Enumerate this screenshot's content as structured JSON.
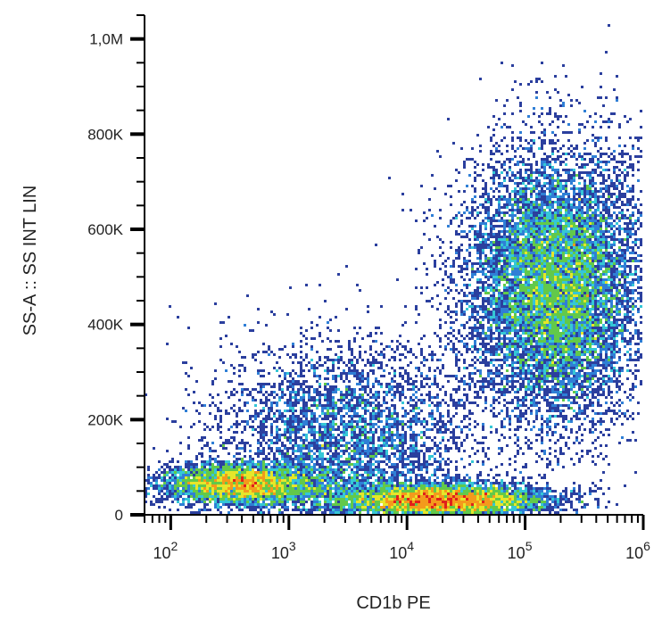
{
  "chart_data": {
    "type": "scatter",
    "subtype": "flow-cytometry density dot plot",
    "title": "",
    "xlabel": "CD1b PE",
    "ylabel": "SS-A :: SS INT LIN",
    "x_scale": "log",
    "y_scale": "linear",
    "xlim": [
      60,
      1000000
    ],
    "ylim": [
      0,
      1050000
    ],
    "x_ticks": [
      {
        "value": 100,
        "base": "10",
        "exp": "2"
      },
      {
        "value": 1000,
        "base": "10",
        "exp": "3"
      },
      {
        "value": 10000,
        "base": "10",
        "exp": "4"
      },
      {
        "value": 100000,
        "base": "10",
        "exp": "5"
      },
      {
        "value": 1000000,
        "base": "10",
        "exp": "6"
      }
    ],
    "y_ticks": [
      {
        "value": 0,
        "label": "0"
      },
      {
        "value": 200000,
        "label": "200K"
      },
      {
        "value": 400000,
        "label": "400K"
      },
      {
        "value": 600000,
        "label": "600K"
      },
      {
        "value": 800000,
        "label": "800K"
      },
      {
        "value": 1000000,
        "label": "1,0M"
      }
    ],
    "grid": false,
    "color_scale": [
      "#2b3f9e",
      "#2f7fd6",
      "#35c7d6",
      "#62c94a",
      "#e6e62a",
      "#f39a1c",
      "#e0201c"
    ],
    "populations": [
      {
        "x_center": 400,
        "y_center": 65000,
        "x_spread_log10": 0.35,
        "y_spread": 22000,
        "weight": 0.16
      },
      {
        "x_center": 20000,
        "y_center": 30000,
        "x_spread_log10": 0.45,
        "y_spread": 18000,
        "weight": 0.22
      },
      {
        "x_center": 180000,
        "y_center": 480000,
        "x_spread_log10": 0.38,
        "y_spread": 140000,
        "weight": 0.44
      },
      {
        "x_center": 3000,
        "y_center": 150000,
        "x_spread_log10": 0.55,
        "y_spread": 110000,
        "weight": 0.18
      }
    ]
  }
}
